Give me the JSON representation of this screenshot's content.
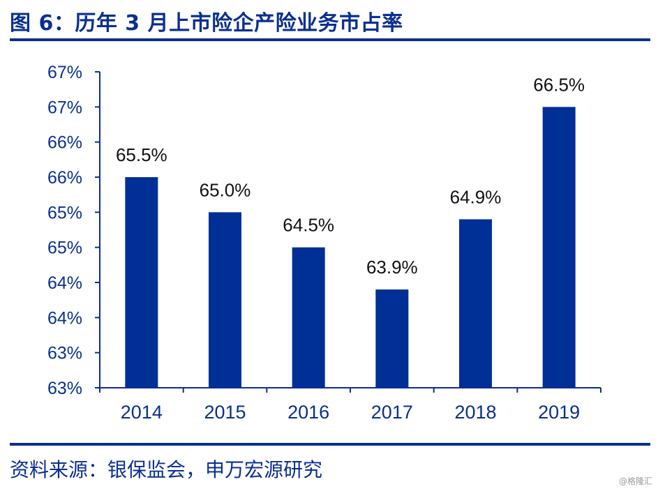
{
  "header": {
    "title": "图 6：历年 3 月上市险企产险业务市占率"
  },
  "footer": {
    "source": "资料来源：银保监会，申万宏源研究",
    "watermark": "@格隆汇"
  },
  "colors": {
    "bar": "#002F96",
    "axis": "#0a2f8f",
    "rule": "#0a2f8f"
  },
  "chart_data": {
    "type": "bar",
    "title": "",
    "xlabel": "",
    "ylabel": "",
    "categories": [
      "2014",
      "2015",
      "2016",
      "2017",
      "2018",
      "2019"
    ],
    "values": [
      65.5,
      65.0,
      64.5,
      63.9,
      64.9,
      66.5
    ],
    "data_labels": [
      "65.5%",
      "65.0%",
      "64.5%",
      "63.9%",
      "64.9%",
      "66.5%"
    ],
    "ylim": [
      62.5,
      67.0
    ],
    "yticks": [
      62.5,
      63.0,
      63.5,
      64.0,
      64.5,
      65.0,
      65.5,
      66.0,
      66.5,
      67.0
    ],
    "ytick_labels": [
      "63%",
      "63%",
      "64%",
      "64%",
      "65%",
      "65%",
      "66%",
      "66%",
      "67%",
      "67%"
    ],
    "grid": false,
    "legend": "none"
  }
}
